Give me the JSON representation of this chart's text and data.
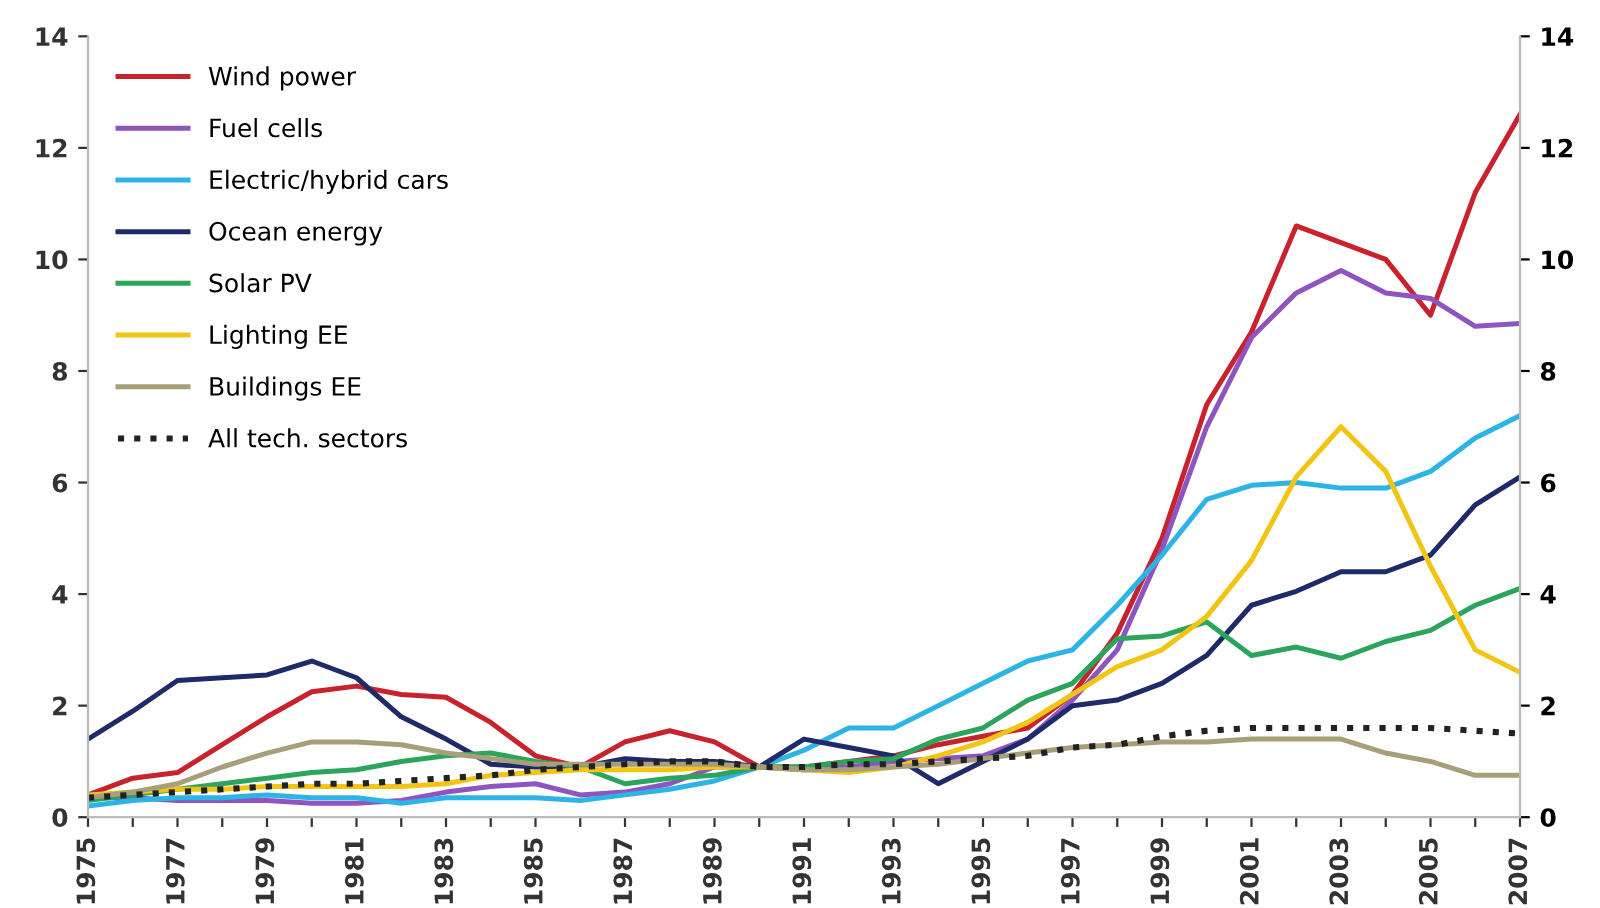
{
  "chart_data": {
    "type": "line",
    "x": [
      1975,
      1976,
      1977,
      1978,
      1979,
      1980,
      1981,
      1982,
      1983,
      1984,
      1985,
      1986,
      1987,
      1988,
      1989,
      1990,
      1991,
      1992,
      1993,
      1994,
      1995,
      1996,
      1997,
      1998,
      1999,
      2000,
      2001,
      2002,
      2003,
      2004,
      2005,
      2006,
      2007
    ],
    "series": [
      {
        "name": "Wind power",
        "color": "#c8232c",
        "values": [
          0.4,
          0.7,
          0.8,
          1.3,
          1.8,
          2.25,
          2.35,
          2.2,
          2.15,
          1.7,
          1.1,
          0.9,
          1.35,
          1.55,
          1.35,
          0.9,
          0.9,
          1.0,
          1.1,
          1.3,
          1.45,
          1.6,
          2.2,
          3.3,
          5.0,
          7.4,
          8.7,
          10.6,
          10.3,
          10.0,
          9.0,
          11.2,
          12.6
        ]
      },
      {
        "name": "Fuel cells",
        "color": "#8e55c0",
        "values": [
          0.35,
          0.35,
          0.3,
          0.3,
          0.3,
          0.25,
          0.25,
          0.3,
          0.45,
          0.55,
          0.6,
          0.4,
          0.45,
          0.6,
          0.9,
          0.9,
          0.85,
          0.9,
          1.0,
          1.05,
          1.1,
          1.4,
          2.1,
          3.0,
          4.8,
          7.0,
          8.6,
          9.4,
          9.8,
          9.4,
          9.3,
          8.8,
          8.85
        ]
      },
      {
        "name": "Electric/hybrid cars",
        "color": "#2db4e6",
        "values": [
          0.2,
          0.3,
          0.35,
          0.35,
          0.4,
          0.35,
          0.35,
          0.25,
          0.35,
          0.35,
          0.35,
          0.3,
          0.4,
          0.5,
          0.65,
          0.9,
          1.2,
          1.6,
          1.6,
          2.0,
          2.4,
          2.8,
          3.0,
          3.8,
          4.7,
          5.7,
          5.95,
          6.0,
          5.9,
          5.9,
          6.2,
          6.8,
          7.2
        ]
      },
      {
        "name": "Ocean energy",
        "color": "#1f2a68",
        "values": [
          1.4,
          1.9,
          2.45,
          2.5,
          2.55,
          2.8,
          2.5,
          1.8,
          1.4,
          0.95,
          0.9,
          0.9,
          1.05,
          1.0,
          1.0,
          0.9,
          1.4,
          1.25,
          1.1,
          0.6,
          1.0,
          1.4,
          2.0,
          2.1,
          2.4,
          2.9,
          3.8,
          4.05,
          4.4,
          4.4,
          4.7,
          5.6,
          6.1
        ]
      },
      {
        "name": "Solar PV",
        "color": "#2ba55c",
        "values": [
          0.3,
          0.4,
          0.5,
          0.6,
          0.7,
          0.8,
          0.85,
          1.0,
          1.1,
          1.15,
          1.0,
          0.9,
          0.6,
          0.7,
          0.75,
          0.9,
          0.9,
          1.0,
          1.05,
          1.4,
          1.6,
          2.1,
          2.4,
          3.2,
          3.25,
          3.5,
          2.9,
          3.05,
          2.85,
          3.15,
          3.35,
          3.8,
          4.1
        ]
      },
      {
        "name": "Lighting EE",
        "color": "#f2c514",
        "values": [
          0.4,
          0.45,
          0.5,
          0.5,
          0.55,
          0.55,
          0.55,
          0.55,
          0.6,
          0.75,
          0.8,
          0.85,
          0.85,
          0.85,
          0.9,
          0.9,
          0.85,
          0.8,
          0.9,
          1.1,
          1.35,
          1.7,
          2.2,
          2.7,
          3.0,
          3.6,
          4.6,
          6.1,
          7.0,
          6.2,
          4.5,
          3.0,
          2.6
        ]
      },
      {
        "name": "Buildings EE",
        "color": "#a89f7a",
        "values": [
          0.35,
          0.45,
          0.6,
          0.9,
          1.15,
          1.35,
          1.35,
          1.3,
          1.15,
          1.05,
          0.95,
          0.95,
          0.95,
          0.95,
          0.95,
          0.9,
          0.85,
          0.85,
          0.9,
          0.95,
          1.05,
          1.15,
          1.25,
          1.3,
          1.35,
          1.35,
          1.4,
          1.4,
          1.4,
          1.15,
          1.0,
          0.75,
          0.75
        ]
      },
      {
        "name": "All tech. sectors",
        "color": "#222222",
        "line_style": "dotted",
        "values": [
          0.35,
          0.4,
          0.45,
          0.5,
          0.55,
          0.6,
          0.6,
          0.65,
          0.7,
          0.75,
          0.85,
          0.9,
          0.95,
          1.0,
          1.0,
          0.9,
          0.9,
          0.95,
          0.95,
          1.0,
          1.05,
          1.1,
          1.25,
          1.3,
          1.45,
          1.55,
          1.6,
          1.6,
          1.6,
          1.6,
          1.6,
          1.55,
          1.5
        ]
      }
    ],
    "xlim": [
      1975,
      2007
    ],
    "xticks": [
      1975,
      {
        "value": 1976,
        "label": null
      },
      1977,
      {
        "value": 1978,
        "label": null
      },
      1979,
      {
        "value": 1980,
        "label": null
      },
      1981,
      {
        "value": 1982,
        "label": null
      },
      1983,
      {
        "value": 1984,
        "label": null
      },
      1985,
      {
        "value": 1986,
        "label": null
      },
      1987,
      {
        "value": 1988,
        "label": null
      },
      1989,
      {
        "value": 1990,
        "label": null
      },
      1991,
      {
        "value": 1992,
        "label": null
      },
      1993,
      {
        "value": 1994,
        "label": null
      },
      1995,
      {
        "value": 1996,
        "label": null
      },
      1997,
      {
        "value": 1998,
        "label": null
      },
      1999,
      {
        "value": 2000,
        "label": null
      },
      2001,
      {
        "value": 2002,
        "label": null
      },
      2003,
      {
        "value": 2004,
        "label": null
      },
      2005,
      {
        "value": 2006,
        "label": null
      },
      2007
    ],
    "ylim": [
      0,
      14
    ],
    "yticks": [
      0,
      2,
      4,
      6,
      8,
      10,
      12,
      14
    ],
    "y2lim": [
      0,
      14
    ],
    "y2ticks": [
      0,
      2,
      4,
      6,
      8,
      10,
      12,
      14
    ],
    "legend": "top left",
    "grid": false,
    "line_style": "solid",
    "marker": "none"
  }
}
